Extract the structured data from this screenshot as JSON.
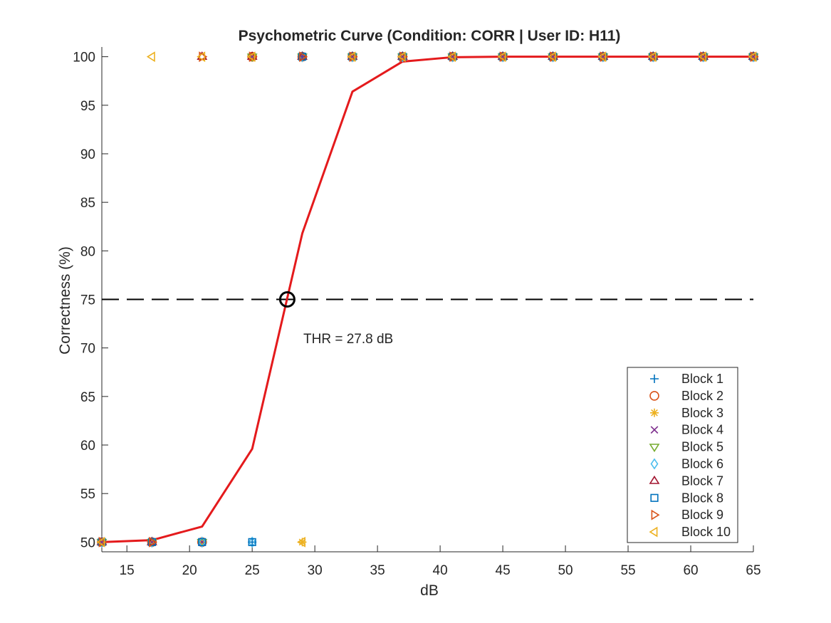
{
  "chart_data": {
    "type": "line",
    "title": "Psychometric Curve (Condition: CORR | User ID: H11)",
    "xlabel": "dB",
    "ylabel": "Correctness (%)",
    "xlim": [
      13,
      65
    ],
    "ylim": [
      49,
      101
    ],
    "xticks": [
      15,
      20,
      25,
      30,
      35,
      40,
      45,
      50,
      55,
      60,
      65
    ],
    "yticks": [
      50,
      55,
      60,
      65,
      70,
      75,
      80,
      85,
      90,
      95,
      100
    ],
    "grid": false,
    "legend_position": "bottom-right",
    "threshold_line": {
      "y": 75,
      "style": "dashed",
      "color": "#000000"
    },
    "threshold_point": {
      "x": 27.8,
      "y": 75
    },
    "threshold_label": "THR = 27.8 dB",
    "fit_curve": {
      "color": "#e41a1c",
      "x": [
        13,
        17,
        21,
        25,
        29,
        33,
        37,
        41,
        45,
        49,
        53,
        57,
        61,
        65
      ],
      "y": [
        50.0,
        50.2,
        51.6,
        59.6,
        81.8,
        96.4,
        99.5,
        99.95,
        100,
        100,
        100,
        100,
        100,
        100
      ]
    },
    "series": [
      {
        "name": "Block 1",
        "marker": "plus",
        "color": "#0072BD",
        "x": [
          13,
          17,
          21,
          25,
          29,
          33,
          37,
          41,
          45,
          49,
          53,
          57,
          61,
          65
        ],
        "y": [
          50,
          50,
          50,
          50,
          100,
          100,
          100,
          100,
          100,
          100,
          100,
          100,
          100,
          100
        ]
      },
      {
        "name": "Block 2",
        "marker": "circle",
        "color": "#D95319",
        "x": [
          13,
          17,
          21,
          25,
          29,
          33,
          37,
          41,
          45,
          49,
          53,
          57,
          61,
          65
        ],
        "y": [
          50,
          50,
          50,
          100,
          100,
          100,
          100,
          100,
          100,
          100,
          100,
          100,
          100,
          100
        ]
      },
      {
        "name": "Block 3",
        "marker": "asterisk",
        "color": "#EDB120",
        "x": [
          13,
          17,
          21,
          25,
          29,
          33,
          37,
          41,
          45,
          49,
          53,
          57,
          61,
          65
        ],
        "y": [
          50,
          50,
          50,
          100,
          50,
          100,
          100,
          100,
          100,
          100,
          100,
          100,
          100,
          100
        ]
      },
      {
        "name": "Block 4",
        "marker": "cross",
        "color": "#7E2F8E",
        "x": [
          13,
          17,
          21,
          25,
          29,
          33,
          37,
          41,
          45,
          49,
          53,
          57,
          61,
          65
        ],
        "y": [
          50,
          50,
          50,
          100,
          100,
          100,
          100,
          100,
          100,
          100,
          100,
          100,
          100,
          100
        ]
      },
      {
        "name": "Block 5",
        "marker": "triangle-down",
        "color": "#77AC30",
        "x": [
          13,
          17,
          21,
          25,
          29,
          33,
          37,
          41,
          45,
          49,
          53,
          57,
          61,
          65
        ],
        "y": [
          50,
          50,
          50,
          100,
          100,
          100,
          100,
          100,
          100,
          100,
          100,
          100,
          100,
          100
        ]
      },
      {
        "name": "Block 6",
        "marker": "diamond",
        "color": "#4DBEEE",
        "x": [
          13,
          17,
          21,
          25,
          29,
          33,
          37,
          41,
          45,
          49,
          53,
          57,
          61,
          65
        ],
        "y": [
          50,
          50,
          50,
          50,
          100,
          100,
          100,
          100,
          100,
          100,
          100,
          100,
          100,
          100
        ]
      },
      {
        "name": "Block 7",
        "marker": "triangle-up",
        "color": "#A2142F",
        "x": [
          13,
          17,
          21,
          25,
          29,
          33,
          37,
          41,
          45,
          49,
          53,
          57,
          61,
          65
        ],
        "y": [
          50,
          50,
          100,
          100,
          100,
          100,
          100,
          100,
          100,
          100,
          100,
          100,
          100,
          100
        ]
      },
      {
        "name": "Block 8",
        "marker": "square",
        "color": "#0072BD",
        "x": [
          13,
          17,
          21,
          25,
          29,
          33,
          37,
          41,
          45,
          49,
          53,
          57,
          61,
          65
        ],
        "y": [
          50,
          50,
          50,
          50,
          100,
          100,
          100,
          100,
          100,
          100,
          100,
          100,
          100,
          100
        ]
      },
      {
        "name": "Block 9",
        "marker": "triangle-right",
        "color": "#D95319",
        "x": [
          13,
          17,
          21,
          25,
          29,
          33,
          37,
          41,
          45,
          49,
          53,
          57,
          61,
          65
        ],
        "y": [
          50,
          50,
          100,
          100,
          100,
          100,
          100,
          100,
          100,
          100,
          100,
          100,
          100,
          100
        ]
      },
      {
        "name": "Block 10",
        "marker": "triangle-left",
        "color": "#EDB120",
        "x": [
          13,
          17,
          21,
          25,
          29,
          33,
          37,
          41,
          45,
          49,
          53,
          57,
          61,
          65
        ],
        "y": [
          50,
          100,
          100,
          100,
          50,
          100,
          100,
          100,
          100,
          100,
          100,
          100,
          100,
          100
        ]
      }
    ]
  }
}
